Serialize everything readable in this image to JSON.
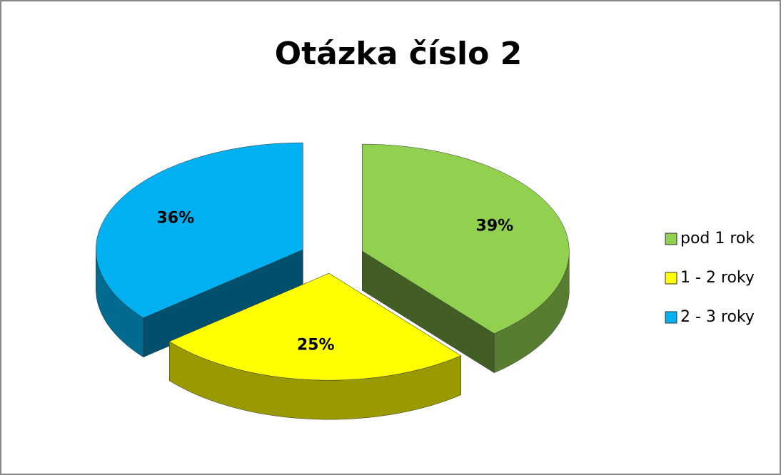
{
  "chart_data": {
    "type": "pie3d",
    "title": "Otázka číslo 2",
    "categories": [
      "pod 1 rok",
      "1 - 2 roky",
      "2 - 3 roky"
    ],
    "values": [
      39,
      25,
      36
    ],
    "value_labels": [
      "39%",
      "25%",
      "36%"
    ],
    "colors": [
      "#92d050",
      "#ffff00",
      "#00b0f0"
    ],
    "legend": "right"
  }
}
